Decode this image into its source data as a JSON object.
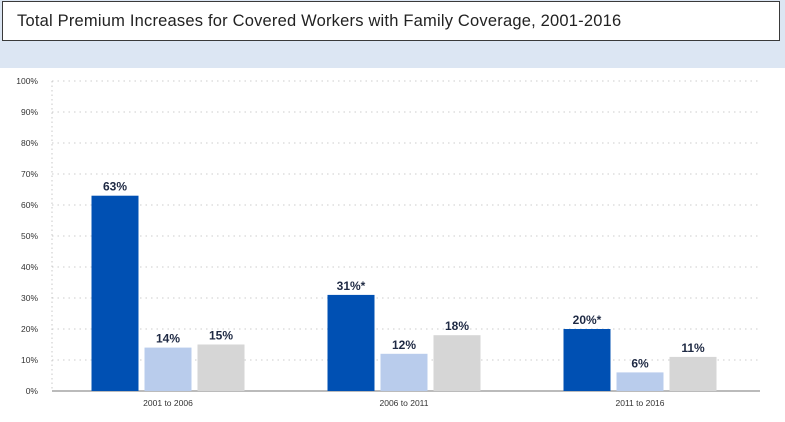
{
  "header": {
    "title": "Total Premium Increases for Covered Workers with Family Coverage, 2001-2016"
  },
  "colors": {
    "background": "#dce6f3",
    "series_colors": [
      "#0050b3",
      "#b9ccec",
      "#d6d6d6"
    ],
    "gridline": "#bcbcbc"
  },
  "chart_data": {
    "type": "bar",
    "title": "Total Premium Increases for Covered Workers with Family Coverage, 2001-2016",
    "xlabel": "",
    "ylabel": "",
    "categories": [
      "2001 to 2006",
      "2006 to 2011",
      "2011 to 2016"
    ],
    "series": [
      {
        "values": [
          63,
          31,
          20
        ],
        "labels": [
          "63%",
          "31%*",
          "20%*"
        ]
      },
      {
        "values": [
          14,
          12,
          6
        ],
        "labels": [
          "14%",
          "12%",
          "6%"
        ]
      },
      {
        "values": [
          15,
          18,
          11
        ],
        "labels": [
          "15%",
          "18%",
          "11%"
        ]
      }
    ],
    "ylim": [
      0,
      100
    ],
    "yticks": [
      0,
      10,
      20,
      30,
      40,
      50,
      60,
      70,
      80,
      90,
      100
    ],
    "ytick_labels": [
      "0%",
      "10%",
      "20%",
      "30%",
      "40%",
      "50%",
      "60%",
      "70%",
      "80%",
      "90%",
      "100%"
    ],
    "grid": true,
    "legend": "none"
  }
}
